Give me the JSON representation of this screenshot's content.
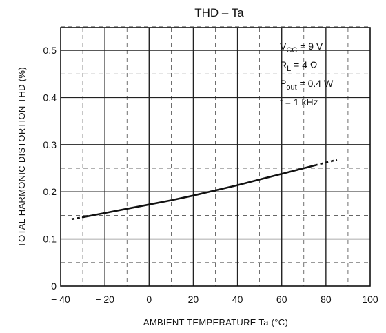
{
  "chart_data": {
    "type": "line",
    "title": "THD  –  Ta",
    "xlabel": "AMBIENT TEMPERATURE    Ta    (°C)",
    "ylabel": "TOTAL HARMONIC DISTORTION    THD    (%)",
    "xlim": [
      -40,
      100
    ],
    "ylim": [
      0,
      0.55
    ],
    "x_ticks": [
      -40,
      -20,
      0,
      20,
      40,
      60,
      80,
      100
    ],
    "x_tick_labels": [
      "− 40",
      "− 20",
      "0",
      "20",
      "40",
      "60",
      "80",
      "100"
    ],
    "y_ticks": [
      0,
      0.1,
      0.2,
      0.3,
      0.4,
      0.5
    ],
    "y_tick_labels": [
      "0",
      "0.1",
      "0.2",
      "0.3",
      "0.4",
      "0.5"
    ],
    "grid": true,
    "series": [
      {
        "x": [
          -35,
          -30,
          -20,
          -10,
          0,
          10,
          20,
          30,
          40,
          50,
          60,
          70,
          75,
          80,
          85
        ],
        "y": [
          0.142,
          0.146,
          0.155,
          0.164,
          0.173,
          0.182,
          0.192,
          0.203,
          0.214,
          0.226,
          0.238,
          0.25,
          0.256,
          0.262,
          0.268
        ],
        "solid_range": [
          -30,
          75
        ]
      }
    ],
    "annotations": [
      {
        "main": "V",
        "sub": "CC",
        "rest": " = 9 V"
      },
      {
        "main": "R",
        "sub": "L",
        "rest": " = 4 Ω"
      },
      {
        "main": "P",
        "sub": "out",
        "rest": " = 0.4 W"
      },
      {
        "main": "f = 1 kHz",
        "sub": "",
        "rest": ""
      }
    ]
  }
}
